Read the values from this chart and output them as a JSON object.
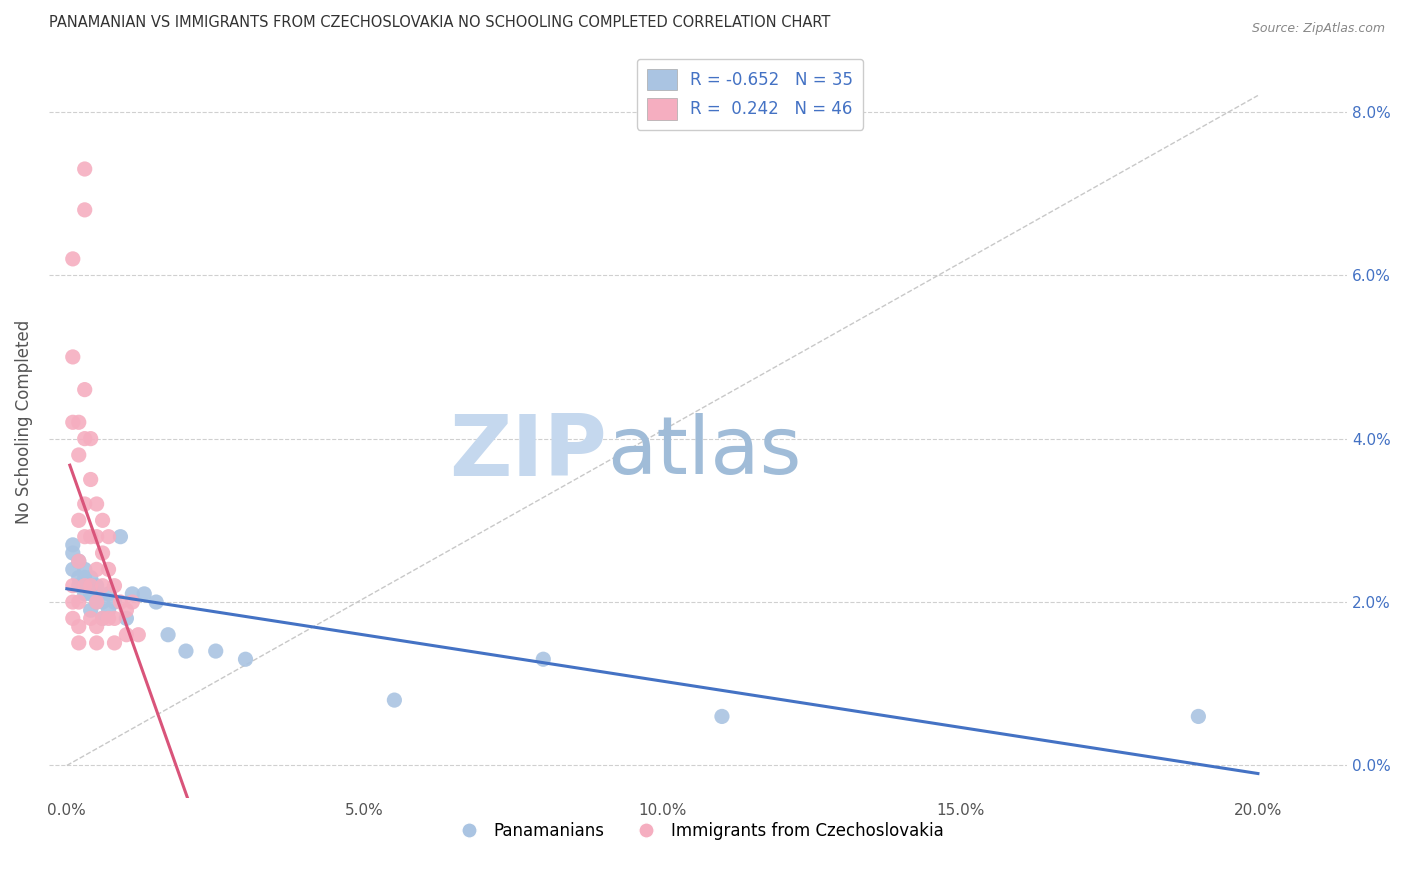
{
  "title": "PANAMANIAN VS IMMIGRANTS FROM CZECHOSLOVAKIA NO SCHOOLING COMPLETED CORRELATION CHART",
  "source": "Source: ZipAtlas.com",
  "xlabel_ticks": [
    "0.0%",
    "5.0%",
    "10.0%",
    "15.0%",
    "20.0%"
  ],
  "xlabel_tick_vals": [
    0.0,
    0.05,
    0.1,
    0.15,
    0.2
  ],
  "ylabel": "No Schooling Completed",
  "ylabel_ticks": [
    "0.0%",
    "2.0%",
    "4.0%",
    "6.0%",
    "8.0%"
  ],
  "ylabel_tick_vals": [
    0.0,
    0.02,
    0.04,
    0.06,
    0.08
  ],
  "xlim": [
    -0.003,
    0.215
  ],
  "ylim": [
    -0.004,
    0.088
  ],
  "blue_R": -0.652,
  "blue_N": 35,
  "pink_R": 0.242,
  "pink_N": 46,
  "blue_color": "#aac4e2",
  "pink_color": "#f5aec0",
  "blue_line_color": "#4472c4",
  "pink_line_color": "#d9547a",
  "diagonal_color": "#c8c8c8",
  "legend_label_blue": "Panamanians",
  "legend_label_pink": "Immigrants from Czechoslovakia",
  "blue_scatter_x": [
    0.001,
    0.001,
    0.001,
    0.002,
    0.002,
    0.002,
    0.003,
    0.003,
    0.003,
    0.003,
    0.004,
    0.004,
    0.004,
    0.004,
    0.005,
    0.005,
    0.005,
    0.006,
    0.006,
    0.007,
    0.007,
    0.008,
    0.009,
    0.01,
    0.011,
    0.013,
    0.015,
    0.017,
    0.02,
    0.025,
    0.03,
    0.055,
    0.08,
    0.11,
    0.19
  ],
  "blue_scatter_y": [
    0.027,
    0.026,
    0.024,
    0.025,
    0.023,
    0.022,
    0.024,
    0.023,
    0.022,
    0.021,
    0.023,
    0.022,
    0.021,
    0.019,
    0.022,
    0.021,
    0.02,
    0.02,
    0.018,
    0.021,
    0.019,
    0.02,
    0.028,
    0.018,
    0.021,
    0.021,
    0.02,
    0.016,
    0.014,
    0.014,
    0.013,
    0.008,
    0.013,
    0.006,
    0.006
  ],
  "pink_scatter_x": [
    0.001,
    0.001,
    0.001,
    0.001,
    0.001,
    0.001,
    0.002,
    0.002,
    0.002,
    0.002,
    0.002,
    0.002,
    0.002,
    0.003,
    0.003,
    0.003,
    0.003,
    0.003,
    0.003,
    0.003,
    0.004,
    0.004,
    0.004,
    0.004,
    0.004,
    0.005,
    0.005,
    0.005,
    0.005,
    0.005,
    0.005,
    0.006,
    0.006,
    0.006,
    0.006,
    0.007,
    0.007,
    0.007,
    0.008,
    0.008,
    0.008,
    0.009,
    0.01,
    0.01,
    0.011,
    0.012
  ],
  "pink_scatter_y": [
    0.062,
    0.05,
    0.042,
    0.022,
    0.02,
    0.018,
    0.042,
    0.038,
    0.03,
    0.025,
    0.02,
    0.017,
    0.015,
    0.073,
    0.068,
    0.046,
    0.04,
    0.032,
    0.028,
    0.022,
    0.04,
    0.035,
    0.028,
    0.022,
    0.018,
    0.032,
    0.028,
    0.024,
    0.02,
    0.017,
    0.015,
    0.03,
    0.026,
    0.022,
    0.018,
    0.028,
    0.024,
    0.018,
    0.022,
    0.018,
    0.015,
    0.02,
    0.019,
    0.016,
    0.02,
    0.016
  ]
}
